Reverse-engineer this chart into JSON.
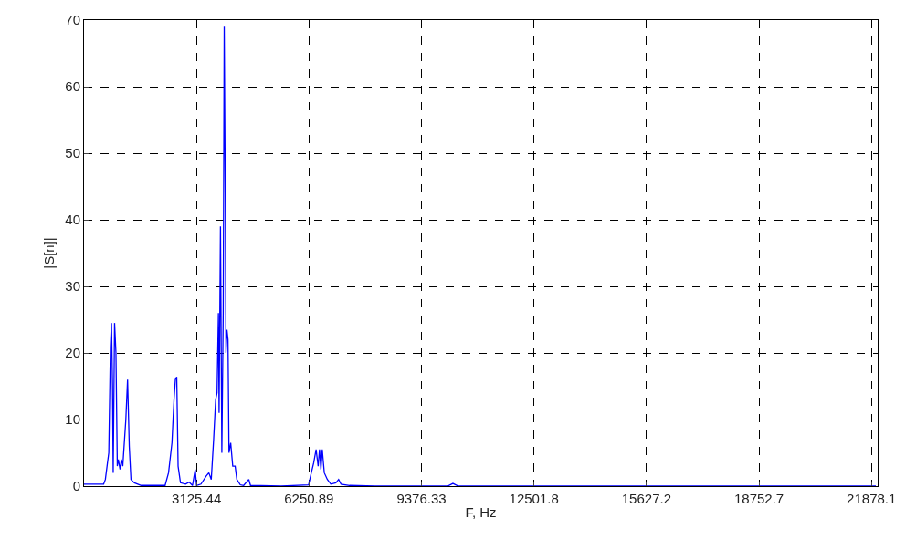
{
  "chart_data": {
    "type": "line",
    "xlabel": "F, Hz",
    "ylabel": "|S[n]|",
    "xlim": [
      0,
      22050
    ],
    "ylim": [
      0,
      70
    ],
    "xticks": [
      3125.44,
      6250.89,
      9376.33,
      12501.8,
      15627.2,
      18752.7,
      21878.1
    ],
    "yticks": [
      0,
      10,
      20,
      30,
      40,
      50,
      60,
      70
    ],
    "grid": true,
    "legend": false,
    "marker": "none",
    "line_style": "solid",
    "series": [
      {
        "color": "#0000ff",
        "x": [
          0,
          166,
          545,
          593,
          640,
          688,
          735,
          763,
          792,
          811,
          849,
          887,
          925,
          953,
          1001,
          1039,
          1077,
          1162,
          1210,
          1257,
          1304,
          1399,
          1589,
          2253,
          2348,
          2443,
          2500,
          2538,
          2576,
          2614,
          2680,
          2823,
          2918,
          3013,
          3089,
          3126,
          3250,
          3392,
          3468,
          3535,
          3601,
          3658,
          3696,
          3734,
          3753,
          3791,
          3829,
          3867,
          3895,
          3924,
          3943,
          3971,
          4000,
          4028,
          4075,
          4132,
          4199,
          4246,
          4341,
          4436,
          4578,
          4626,
          5480,
          6239,
          6315,
          6382,
          6448,
          6505,
          6543,
          6581,
          6619,
          6676,
          6761,
          6856,
          6998,
          7074,
          7141,
          7378,
          8090,
          10100,
          10250,
          10400,
          22000
        ],
        "values": [
          0.3,
          0.3,
          0.3,
          1,
          3,
          5,
          21,
          24.5,
          15,
          2,
          24.5,
          20,
          3,
          4,
          2.5,
          4,
          3,
          10,
          16,
          6,
          1,
          0.5,
          0.1,
          0.1,
          2,
          6.5,
          13,
          16,
          16.4,
          3,
          0.5,
          0.3,
          0.6,
          0.1,
          2.5,
          0.1,
          0.3,
          1.5,
          2,
          1,
          7,
          13,
          14,
          26,
          11,
          39,
          5,
          26,
          69,
          44,
          20,
          23.5,
          22,
          5,
          6.5,
          3,
          3,
          1,
          0.2,
          0.1,
          1,
          0.1,
          0,
          0.2,
          2,
          3.5,
          5.5,
          3,
          5.5,
          2.5,
          5.5,
          2,
          1,
          0.3,
          0.5,
          1,
          0.3,
          0.1,
          0,
          0,
          0.4,
          0,
          0
        ]
      }
    ]
  }
}
